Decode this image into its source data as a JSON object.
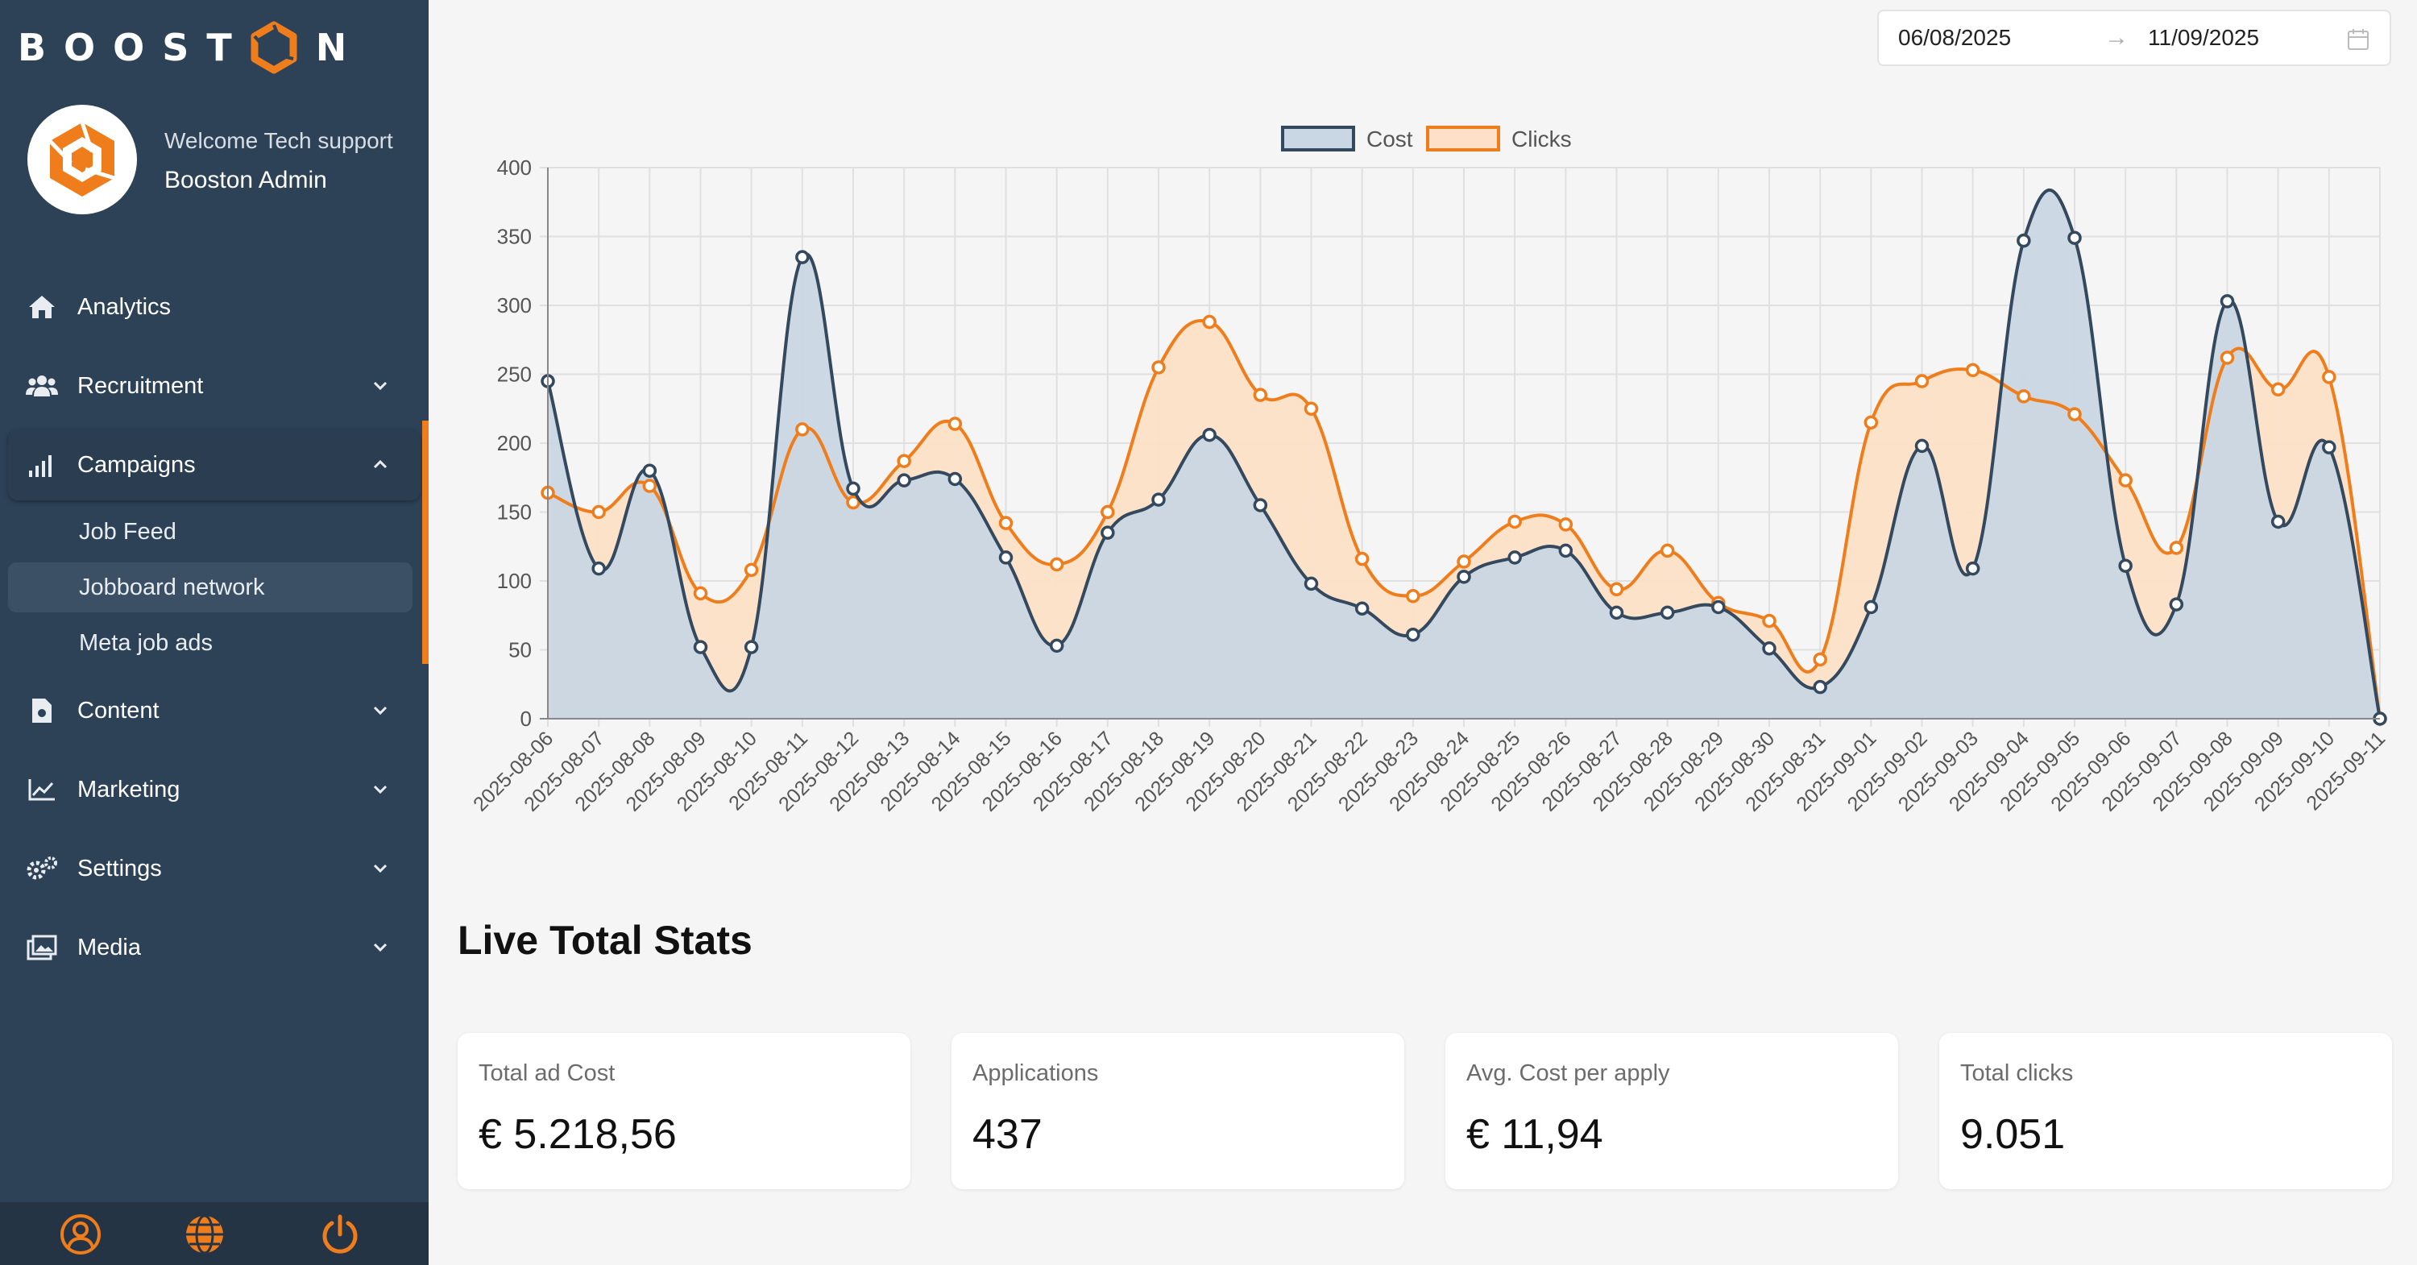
{
  "brand": {
    "logo_left": "BOOST",
    "logo_right": "N",
    "accent": "#f07d1c",
    "sidebar_bg": "#2d4257"
  },
  "profile": {
    "welcome": "Welcome Tech support",
    "name": "Booston Admin"
  },
  "nav": {
    "items": [
      {
        "label": "Analytics",
        "icon": "home-icon"
      },
      {
        "label": "Recruitment",
        "icon": "users-icon"
      },
      {
        "label": "Campaigns",
        "icon": "signal-bars-icon"
      },
      {
        "label": "Content",
        "icon": "file-icon"
      },
      {
        "label": "Marketing",
        "icon": "line-chart-icon"
      },
      {
        "label": "Settings",
        "icon": "gears-icon"
      },
      {
        "label": "Media",
        "icon": "images-icon"
      }
    ],
    "campaigns_sub": [
      "Job Feed",
      "Jobboard network",
      "Meta job ads"
    ]
  },
  "footer_icons": [
    "user-circle-icon",
    "globe-icon",
    "power-icon"
  ],
  "date_range": {
    "start": "06/08/2025",
    "arrow": "→",
    "end": "11/09/2025"
  },
  "chart_data": {
    "type": "area",
    "title": "",
    "xlabel": "",
    "ylabel": "",
    "ylim": [
      0,
      400
    ],
    "yticks": [
      0,
      50,
      100,
      150,
      200,
      250,
      300,
      350,
      400
    ],
    "legend_position": "top-center",
    "grid": true,
    "x": [
      "2025-08-06",
      "2025-08-07",
      "2025-08-08",
      "2025-08-09",
      "2025-08-10",
      "2025-08-11",
      "2025-08-12",
      "2025-08-13",
      "2025-08-14",
      "2025-08-15",
      "2025-08-16",
      "2025-08-17",
      "2025-08-18",
      "2025-08-19",
      "2025-08-20",
      "2025-08-21",
      "2025-08-22",
      "2025-08-23",
      "2025-08-24",
      "2025-08-25",
      "2025-08-26",
      "2025-08-27",
      "2025-08-28",
      "2025-08-29",
      "2025-08-30",
      "2025-08-31",
      "2025-09-01",
      "2025-09-02",
      "2025-09-03",
      "2025-09-04",
      "2025-09-05",
      "2025-09-06",
      "2025-09-07",
      "2025-09-08",
      "2025-09-09",
      "2025-09-10",
      "2025-09-11"
    ],
    "series": [
      {
        "name": "Cost",
        "color": "#34495e",
        "fill": "#c9d6e3",
        "values": [
          245,
          109,
          180,
          52,
          52,
          335,
          167,
          173,
          174,
          117,
          53,
          135,
          159,
          206,
          155,
          98,
          80,
          61,
          103,
          117,
          122,
          77,
          77,
          81,
          51,
          23,
          81,
          198,
          109,
          347,
          349,
          111,
          83,
          303,
          143,
          197,
          0
        ]
      },
      {
        "name": "Clicks",
        "color": "#f07d1c",
        "fill": "#fde0c7",
        "values": [
          164,
          150,
          169,
          91,
          108,
          210,
          157,
          187,
          214,
          142,
          112,
          150,
          255,
          288,
          235,
          225,
          116,
          89,
          114,
          143,
          141,
          94,
          122,
          84,
          71,
          43,
          215,
          245,
          253,
          234,
          221,
          173,
          124,
          262,
          239,
          248,
          0
        ]
      }
    ]
  },
  "stats": {
    "title": "Live Total Stats",
    "cards": [
      {
        "label": "Total ad Cost",
        "value": "€ 5.218,56"
      },
      {
        "label": "Applications",
        "value": "437"
      },
      {
        "label": "Avg. Cost per apply",
        "value": "€ 11,94"
      },
      {
        "label": "Total clicks",
        "value": "9.051"
      }
    ]
  }
}
